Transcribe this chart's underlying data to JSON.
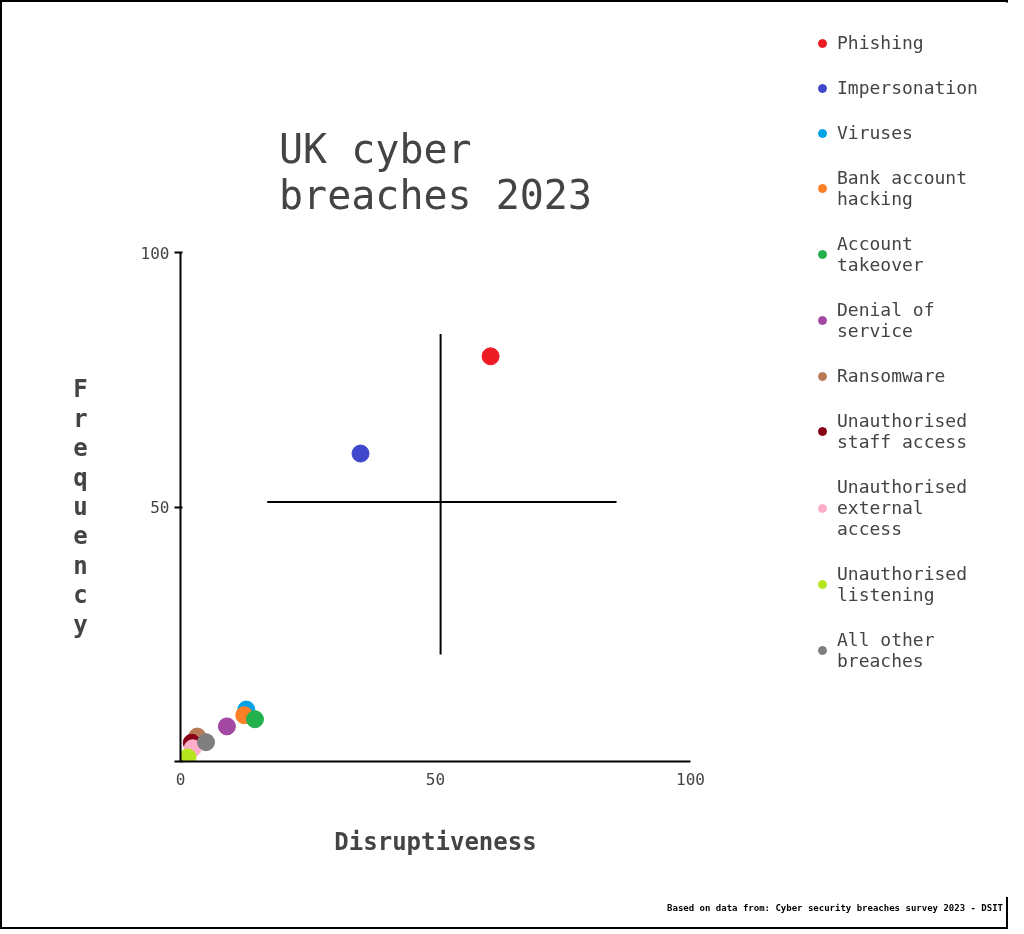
{
  "chart_data": {
    "type": "scatter",
    "title": "UK cyber\nbreaches 2023",
    "xlabel": "Disruptiveness",
    "ylabel": "Frequency",
    "xlim": [
      0,
      100
    ],
    "ylim": [
      0,
      100
    ],
    "xticks": [
      0,
      50,
      100
    ],
    "yticks": [
      {
        "value": 0,
        "label": null
      },
      50,
      100
    ],
    "grid": false,
    "legend": "right",
    "marker": "circle",
    "annotations": [
      "Based on data from: Cyber security breaches survey 2023 - DSIT"
    ],
    "series": [
      {
        "name": "Phishing",
        "color": "#ed1c24",
        "x": [
          60.8
        ],
        "values": [
          79.6
        ]
      },
      {
        "name": "Impersonation",
        "color": "#3f48cc",
        "x": [
          35.3
        ],
        "values": [
          60.5
        ]
      },
      {
        "name": "Viruses",
        "color": "#00a2e8",
        "x": [
          12.9
        ],
        "values": [
          10.2
        ]
      },
      {
        "name": "Bank account\nhacking",
        "color": "#ff7f27",
        "x": [
          12.5
        ],
        "values": [
          9.1
        ]
      },
      {
        "name": "Account\ntakeover",
        "color": "#22b14c",
        "x": [
          14.6
        ],
        "values": [
          8.3
        ]
      },
      {
        "name": "Denial of\nservice",
        "color": "#a349a4",
        "x": [
          9.1
        ],
        "values": [
          6.9
        ]
      },
      {
        "name": "Ransomware",
        "color": "#b97a57",
        "x": [
          3.3
        ],
        "values": [
          4.9
        ]
      },
      {
        "name": "Unauthorised\nstaff access",
        "color": "#880015",
        "x": [
          2.2
        ],
        "values": [
          3.7
        ]
      },
      {
        "name": "Unauthorised\nexternal\naccess",
        "color": "#ffaec9",
        "x": [
          2.4
        ],
        "values": [
          2.6
        ]
      },
      {
        "name": "Unauthorised\nlistening",
        "color": "#b5e61d",
        "x": [
          1.4
        ],
        "values": [
          0.8
        ]
      },
      {
        "name": "All other\nbreaches",
        "color": "#7f7f7f",
        "x": [
          5.0
        ],
        "values": [
          3.8
        ]
      },
      {
        "type": "line",
        "marker": "none",
        "color": "#000000",
        "x": [
          51,
          51
        ],
        "values": [
          21,
          84
        ]
      },
      {
        "type": "line",
        "marker": "none",
        "color": "#000000",
        "x": [
          17,
          85.5
        ],
        "values": [
          51,
          51
        ]
      }
    ]
  }
}
